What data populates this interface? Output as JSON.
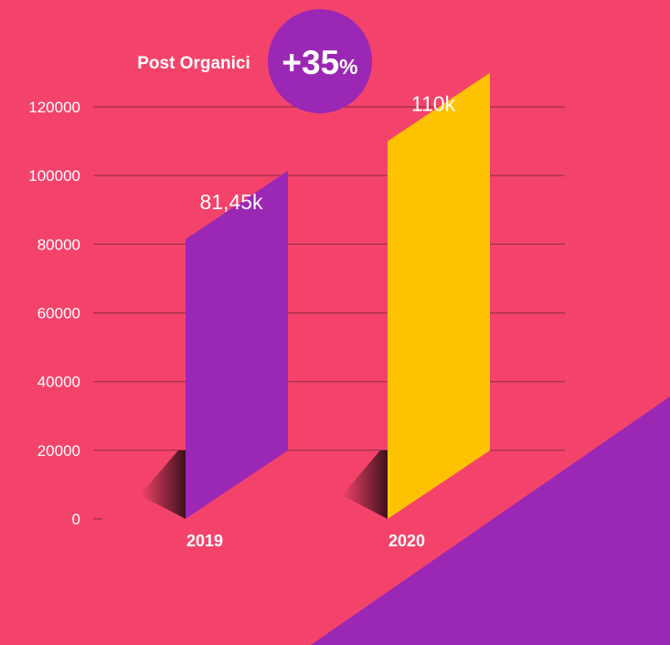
{
  "chart_data": {
    "type": "bar",
    "title": "Post Organici",
    "badge": {
      "value": "+35",
      "unit": "%"
    },
    "categories": [
      "2019",
      "2020"
    ],
    "values": [
      81450,
      110000
    ],
    "data_labels": [
      "81,45k",
      "110k"
    ],
    "ylim": [
      0,
      120000
    ],
    "yticks": [
      0,
      20000,
      40000,
      60000,
      80000,
      100000,
      120000
    ],
    "ytick_labels": [
      "0",
      "20000",
      "40000",
      "60000",
      "80000",
      "100000",
      "120000"
    ],
    "grid": true,
    "xlabel": "",
    "ylabel": "",
    "colors": {
      "background": "#f4436b",
      "corner": "#9b27b5",
      "bar_2019": "#9b27b5",
      "bar_2020": "#ffc200",
      "grid": "#a8324f",
      "badge": "#9b27b5"
    }
  }
}
